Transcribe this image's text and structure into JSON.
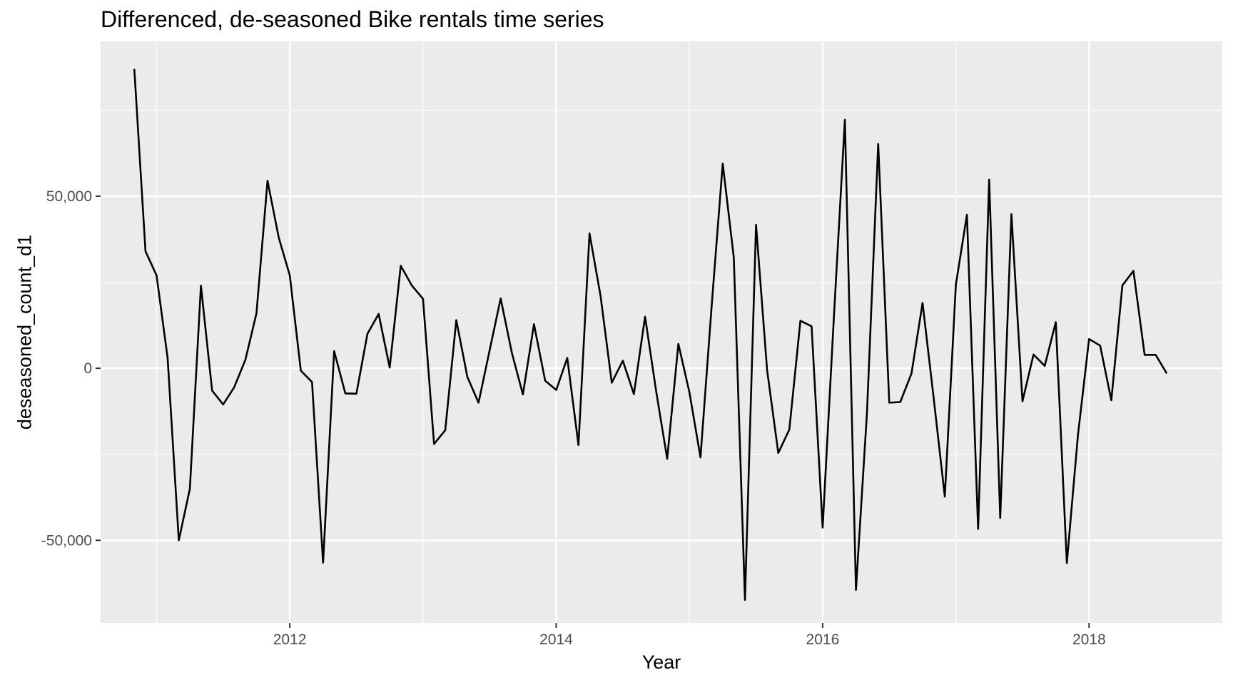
{
  "chart_data": {
    "type": "line",
    "title": "Differenced, de-seasoned Bike rentals time series",
    "xlabel": "Year",
    "ylabel": "deseasoned_count_d1",
    "xlim": [
      2010.58,
      2019.0
    ],
    "ylim": [
      -74000,
      95000
    ],
    "x_ticks": [
      {
        "value": 2012,
        "label": "2012"
      },
      {
        "value": 2014,
        "label": "2014"
      },
      {
        "value": 2016,
        "label": "2016"
      },
      {
        "value": 2018,
        "label": "2018"
      }
    ],
    "y_ticks": [
      {
        "value": -50000,
        "label": "-50,000"
      },
      {
        "value": 0,
        "label": "0"
      },
      {
        "value": 50000,
        "label": "50,000"
      }
    ],
    "grid": true,
    "colors": {
      "panel": "#EBEBEB",
      "grid": "#FFFFFF",
      "line": "#000000",
      "tick": "#333333"
    },
    "series": [
      {
        "name": "deseasoned_count_d1",
        "x": [
          2010.833,
          2010.917,
          2011.0,
          2011.083,
          2011.167,
          2011.25,
          2011.333,
          2011.417,
          2011.5,
          2011.583,
          2011.667,
          2011.75,
          2011.833,
          2011.917,
          2012.0,
          2012.083,
          2012.167,
          2012.25,
          2012.333,
          2012.417,
          2012.5,
          2012.583,
          2012.667,
          2012.75,
          2012.833,
          2012.917,
          2013.0,
          2013.083,
          2013.167,
          2013.25,
          2013.333,
          2013.417,
          2013.5,
          2013.583,
          2013.667,
          2013.75,
          2013.833,
          2013.917,
          2014.0,
          2014.083,
          2014.167,
          2014.25,
          2014.333,
          2014.417,
          2014.5,
          2014.583,
          2014.667,
          2014.75,
          2014.833,
          2014.917,
          2015.0,
          2015.083,
          2015.167,
          2015.25,
          2015.333,
          2015.417,
          2015.5,
          2015.583,
          2015.667,
          2015.75,
          2015.833,
          2015.917,
          2016.0,
          2016.083,
          2016.167,
          2016.25,
          2016.333,
          2016.417,
          2016.5,
          2016.583,
          2016.667,
          2016.75,
          2016.833,
          2016.917,
          2017.0,
          2017.083,
          2017.167,
          2017.25,
          2017.333,
          2017.417,
          2017.5,
          2017.583,
          2017.667,
          2017.75,
          2017.833,
          2017.917,
          2018.0,
          2018.083,
          2018.167,
          2018.25,
          2018.333,
          2018.417,
          2018.5,
          2018.583
        ],
        "values": [
          87000,
          34000,
          27000,
          3000,
          -50000,
          -35000,
          24000,
          -6500,
          -10500,
          -5500,
          2500,
          16000,
          54500,
          38000,
          27000,
          -700,
          -4000,
          -56500,
          5000,
          -7300,
          -7400,
          10000,
          15800,
          200,
          29800,
          24000,
          20200,
          -22000,
          -18000,
          14000,
          -2500,
          -10000,
          5200,
          20300,
          4500,
          -7600,
          12800,
          -3600,
          -6300,
          3000,
          -22300,
          39200,
          21000,
          -4200,
          2200,
          -7500,
          15000,
          -6600,
          -26300,
          7100,
          -7000,
          -25900,
          18200,
          59500,
          32200,
          -67300,
          41700,
          -500,
          -24600,
          -17800,
          13800,
          12200,
          -46300,
          13900,
          72200,
          -64400,
          -12700,
          65200,
          -10000,
          -9800,
          -1500,
          19000,
          -8500,
          -37300,
          24300,
          44600,
          -46700,
          54800,
          -43500,
          44800,
          -9600,
          4000,
          700,
          13400,
          -56600,
          -19200,
          8500,
          6600,
          -9300,
          24100,
          28300,
          3900,
          3900,
          -1500
        ]
      }
    ]
  }
}
